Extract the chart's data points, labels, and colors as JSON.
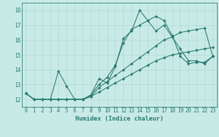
{
  "title": "",
  "xlabel": "Humidex (Indice chaleur)",
  "xlim": [
    -0.5,
    23.5
  ],
  "ylim": [
    11.5,
    18.5
  ],
  "xticks": [
    0,
    1,
    2,
    3,
    4,
    5,
    6,
    7,
    8,
    9,
    10,
    11,
    12,
    13,
    14,
    15,
    16,
    17,
    18,
    19,
    20,
    21,
    22,
    23
  ],
  "yticks": [
    12,
    13,
    14,
    15,
    16,
    17,
    18
  ],
  "bg_color": "#c8eae6",
  "grid_color": "#b0d8d4",
  "line_color": "#2a7a70",
  "lines": [
    [
      12.4,
      12.0,
      12.0,
      12.0,
      13.9,
      12.9,
      12.0,
      12.0,
      12.3,
      13.4,
      13.1,
      14.2,
      16.1,
      16.6,
      18.0,
      17.3,
      16.6,
      17.0,
      16.2,
      15.4,
      14.6,
      14.6,
      14.4,
      14.9
    ],
    [
      12.4,
      12.0,
      12.0,
      12.0,
      12.0,
      12.0,
      12.0,
      12.0,
      12.3,
      13.0,
      13.5,
      14.3,
      15.8,
      16.7,
      17.0,
      17.3,
      17.6,
      17.3,
      16.3,
      14.9,
      14.4,
      14.5,
      14.5,
      14.9
    ],
    [
      12.4,
      12.0,
      12.0,
      12.0,
      12.0,
      12.0,
      12.0,
      12.0,
      12.2,
      12.8,
      13.2,
      13.6,
      14.0,
      14.4,
      14.8,
      15.2,
      15.6,
      16.0,
      16.2,
      16.5,
      16.6,
      16.7,
      16.8,
      14.9
    ],
    [
      12.4,
      12.0,
      12.0,
      12.0,
      12.0,
      12.0,
      12.0,
      12.0,
      12.2,
      12.5,
      12.8,
      13.1,
      13.4,
      13.7,
      14.0,
      14.3,
      14.6,
      14.8,
      15.0,
      15.1,
      15.2,
      15.3,
      15.4,
      15.5
    ]
  ],
  "line_width": 0.8,
  "marker": "D",
  "marker_size": 2.0,
  "xlabel_fontsize": 6.5,
  "tick_fontsize": 5.5
}
